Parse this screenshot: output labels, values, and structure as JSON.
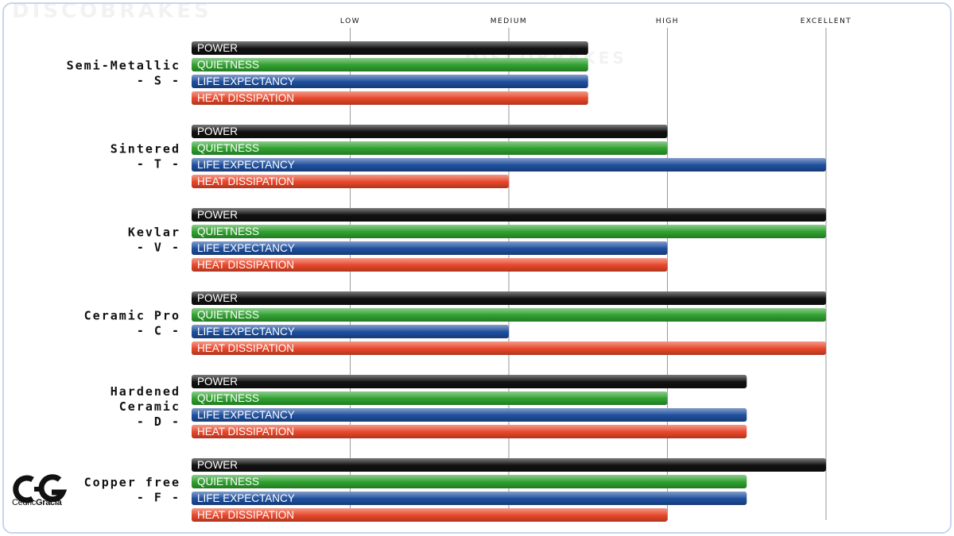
{
  "chart_data": {
    "type": "bar",
    "orientation": "horizontal",
    "levels": [
      "LOW",
      "MEDIUM",
      "HIGH",
      "EXCELLENT"
    ],
    "x_scale_note": "ticks",
    "xlim": [
      0,
      4
    ],
    "grid": true,
    "series_colors": {
      "POWER": "#111111",
      "QUIETNESS": "#2fa12f",
      "LIFE EXPECTANCY": "#1e4f9e",
      "HEAT DISSIPATION": "#e8472a"
    },
    "categories": [
      {
        "lines": [
          "Semi-Metallic",
          "- S -"
        ],
        "values": [
          {
            "name": "POWER",
            "value": 2.5
          },
          {
            "name": "QUIETNESS",
            "value": 2.5
          },
          {
            "name": "LIFE EXPECTANCY",
            "value": 2.5
          },
          {
            "name": "HEAT DISSIPATION",
            "value": 2.5
          }
        ]
      },
      {
        "lines": [
          "Sintered",
          "- T -"
        ],
        "values": [
          {
            "name": "POWER",
            "value": 3
          },
          {
            "name": "QUIETNESS",
            "value": 3
          },
          {
            "name": "LIFE EXPECTANCY",
            "value": 4
          },
          {
            "name": "HEAT DISSIPATION",
            "value": 2
          }
        ]
      },
      {
        "lines": [
          "Kevlar",
          "- V -"
        ],
        "values": [
          {
            "name": "POWER",
            "value": 4
          },
          {
            "name": "QUIETNESS",
            "value": 4
          },
          {
            "name": "LIFE EXPECTANCY",
            "value": 3
          },
          {
            "name": "HEAT DISSIPATION",
            "value": 3
          }
        ]
      },
      {
        "lines": [
          "Ceramic Pro",
          "- C -"
        ],
        "values": [
          {
            "name": "POWER",
            "value": 4
          },
          {
            "name": "QUIETNESS",
            "value": 4
          },
          {
            "name": "LIFE EXPECTANCY",
            "value": 2
          },
          {
            "name": "HEAT DISSIPATION",
            "value": 4
          }
        ]
      },
      {
        "lines": [
          "Hardened",
          "Ceramic",
          "- D -"
        ],
        "values": [
          {
            "name": "POWER",
            "value": 3.5
          },
          {
            "name": "QUIETNESS",
            "value": 3
          },
          {
            "name": "LIFE EXPECTANCY",
            "value": 3.5
          },
          {
            "name": "HEAT DISSIPATION",
            "value": 3.5
          }
        ]
      },
      {
        "lines": [
          "Copper free",
          "- F -"
        ],
        "values": [
          {
            "name": "POWER",
            "value": 4
          },
          {
            "name": "QUIETNESS",
            "value": 3.5
          },
          {
            "name": "LIFE EXPECTANCY",
            "value": 3.5
          },
          {
            "name": "HEAT DISSIPATION",
            "value": 3
          }
        ]
      }
    ]
  },
  "watermark": {
    "brand": "DISCOBRAKES",
    "slogan": "STOP IN STYLE"
  },
  "logo": {
    "monogram": "CG",
    "name_light": "Cédric",
    "name_bold": "Gracia"
  }
}
